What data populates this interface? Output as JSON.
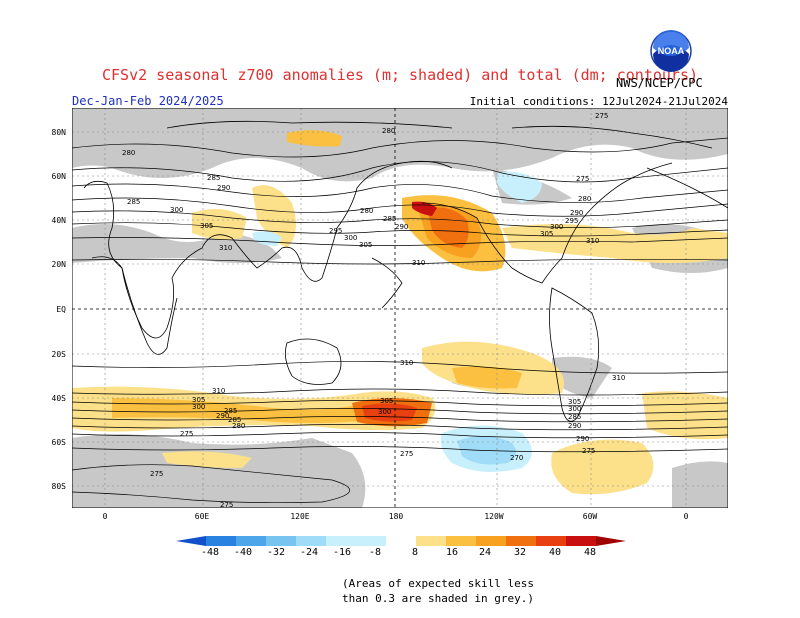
{
  "header": {
    "title": "CFSv2 seasonal z700 anomalies (m; shaded) and total (dm; contours)",
    "season": "Dec-Jan-Feb 2024/2025",
    "initial_conditions": "Initial conditions: 12Jul2024-21Jul2024",
    "agency": "NWS/NCEP/CPC",
    "logo_text": "NOAA"
  },
  "colors": {
    "skill_grey": "#c8c8c8",
    "pos": [
      "#fde08a",
      "#fbc040",
      "#f8a020",
      "#f07010",
      "#e84010",
      "#c81010"
    ],
    "neg": [
      "#c8f0fc",
      "#a0dcf8",
      "#78c4f0",
      "#4ea6ea",
      "#2a82e0",
      "#1050c8"
    ]
  },
  "map": {
    "lat_labels": [
      "80N",
      "60N",
      "40N",
      "20N",
      "EQ",
      "20S",
      "40S",
      "60S",
      "80S"
    ],
    "lon_labels": [
      "0",
      "60E",
      "120E",
      "180",
      "120W",
      "60W",
      "0"
    ],
    "contour_labels": [
      "280",
      "285",
      "290",
      "295",
      "300",
      "305",
      "310",
      "275",
      "270"
    ]
  },
  "colorbar": {
    "ticks": [
      "-48",
      "-40",
      "-32",
      "-24",
      "-16",
      "-8",
      "8",
      "16",
      "24",
      "32",
      "40",
      "48"
    ]
  },
  "note": {
    "line1": "(Areas of expected skill less",
    "line2": "than 0.3 are shaded in grey.)"
  }
}
